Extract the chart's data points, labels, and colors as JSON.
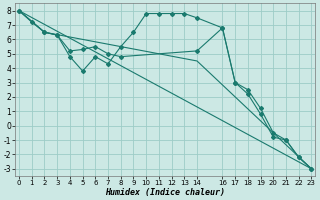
{
  "xlabel": "Humidex (Indice chaleur)",
  "bg_color": "#cce8e4",
  "grid_color": "#9dccc7",
  "line_color": "#1a7a6e",
  "xlim": [
    -0.3,
    23.3
  ],
  "ylim": [
    -3.5,
    8.5
  ],
  "yticks": [
    -3,
    -2,
    -1,
    0,
    1,
    2,
    3,
    4,
    5,
    6,
    7,
    8
  ],
  "xticks": [
    0,
    1,
    2,
    3,
    4,
    5,
    6,
    7,
    8,
    9,
    10,
    11,
    12,
    13,
    14,
    16,
    17,
    18,
    19,
    20,
    21,
    22,
    23
  ],
  "line1_x": [
    0,
    1,
    2,
    3,
    4,
    5,
    6,
    7,
    8,
    9,
    10,
    11,
    12,
    13,
    14,
    16,
    17,
    18,
    19,
    20,
    21,
    22,
    23
  ],
  "line1_y": [
    8.0,
    7.2,
    6.5,
    6.3,
    4.8,
    3.8,
    4.8,
    4.3,
    5.5,
    6.5,
    7.8,
    7.8,
    7.8,
    7.8,
    7.5,
    6.8,
    3.0,
    2.2,
    0.8,
    -0.8,
    -1.0,
    -2.2,
    -3.0
  ],
  "line2_x": [
    0,
    2,
    3,
    4,
    5,
    6,
    7,
    8,
    14,
    16,
    17,
    18,
    19,
    20,
    21,
    22,
    23
  ],
  "line2_y": [
    8.0,
    6.5,
    6.3,
    5.2,
    5.3,
    5.5,
    5.0,
    4.8,
    5.2,
    6.8,
    3.0,
    2.5,
    1.2,
    -0.5,
    -1.0,
    -2.2,
    -3.0
  ],
  "line3_x": [
    0,
    23
  ],
  "line3_y": [
    8.0,
    -3.0
  ],
  "line4_x": [
    0,
    2,
    14,
    23
  ],
  "line4_y": [
    8.0,
    6.5,
    4.5,
    -3.0
  ]
}
